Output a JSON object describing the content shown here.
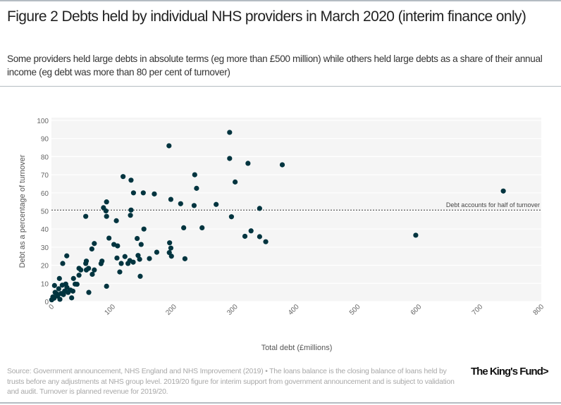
{
  "title": "Figure 2 Debts held by individual NHS providers in March 2020 (interim finance only)",
  "subtitle": "Some providers held large debts in absolute terms (eg more than £500 million) while others held large debts as a share of their annual income (eg debt was more than 80 per cent of turnover)",
  "source": "Source: Government announcement, NHS England and NHS Improvement (2019) • The loans balance is the closing balance of loans held by trusts before any adjustments at NHS group level. 2019/20 figure for interim support from government announcement and is subject to validation and audit. Turnover is planned revenue for 2019/20.",
  "logo": "The King's Fund>",
  "colors": {
    "point": "#00343f",
    "plot_bg": "#f5f5f5",
    "grid": "#ffffff"
  },
  "chart_data": {
    "type": "scatter",
    "xlabel": "Total debt (£millions)",
    "ylabel": "Debt as a percentage of turnover",
    "xlim": [
      0,
      800
    ],
    "ylim": [
      0,
      100
    ],
    "xticks": [
      "0",
      "100",
      "200",
      "300",
      "400",
      "500",
      "600",
      "700",
      "800"
    ],
    "yticks": [
      "0",
      "10",
      "20",
      "30",
      "40",
      "50",
      "60",
      "70",
      "80",
      "90",
      "100"
    ],
    "grid": true,
    "reference_line": {
      "y": 50.5,
      "label": "Debt accounts for half of turnover"
    },
    "points": [
      [
        291,
        93.4
      ],
      [
        192,
        86
      ],
      [
        291,
        79
      ],
      [
        300,
        66
      ],
      [
        117,
        69
      ],
      [
        130,
        67
      ],
      [
        234,
        70
      ],
      [
        237,
        62.5
      ],
      [
        134,
        60
      ],
      [
        150,
        60
      ],
      [
        168,
        59.4
      ],
      [
        195,
        56.4
      ],
      [
        211,
        54
      ],
      [
        233,
        53
      ],
      [
        269,
        53.6
      ],
      [
        90,
        55
      ],
      [
        85,
        51.8
      ],
      [
        89,
        50
      ],
      [
        130,
        50.5
      ],
      [
        129,
        47.6
      ],
      [
        90,
        47
      ],
      [
        56,
        47
      ],
      [
        294,
        46.8
      ],
      [
        106,
        44.6
      ],
      [
        151,
        40
      ],
      [
        216,
        40.7
      ],
      [
        246,
        40.7
      ],
      [
        94,
        35
      ],
      [
        140,
        34.8
      ],
      [
        102,
        31.5
      ],
      [
        108,
        30.7
      ],
      [
        146.5,
        31.5
      ],
      [
        193,
        32.4
      ],
      [
        195,
        29.5
      ],
      [
        192.5,
        27
      ],
      [
        196,
        25
      ],
      [
        172,
        27.2
      ],
      [
        160,
        23.7
      ],
      [
        218,
        23.6
      ],
      [
        70,
        32
      ],
      [
        66,
        29
      ],
      [
        70,
        17.4
      ],
      [
        66.7,
        15
      ],
      [
        61,
        5
      ],
      [
        107,
        24
      ],
      [
        120,
        24.8
      ],
      [
        114,
        21
      ],
      [
        125,
        21
      ],
      [
        128,
        22.6
      ],
      [
        133.5,
        21.7
      ],
      [
        141.5,
        25.4
      ],
      [
        144,
        23.3
      ],
      [
        111.6,
        16.3
      ],
      [
        145,
        13.9
      ],
      [
        90,
        8.4
      ],
      [
        82.5,
        22.3
      ],
      [
        81,
        20.9
      ],
      [
        57,
        22.3
      ],
      [
        56,
        21
      ],
      [
        57,
        17.4
      ],
      [
        60.6,
        18.3
      ],
      [
        45,
        18.3
      ],
      [
        48,
        17.4
      ],
      [
        45,
        14.5
      ],
      [
        36,
        12.7
      ],
      [
        38.7,
        9.6
      ],
      [
        41.8,
        9.5
      ],
      [
        25,
        25.2
      ],
      [
        18.4,
        21
      ],
      [
        13,
        12.7
      ],
      [
        5,
        8.8
      ],
      [
        33,
        2
      ],
      [
        0.4,
        0.9
      ],
      [
        4.2,
        1.8
      ],
      [
        8,
        4.4
      ],
      [
        11.9,
        7
      ],
      [
        13.8,
        1.2
      ],
      [
        17.6,
        9
      ],
      [
        19.6,
        3.8
      ],
      [
        21.5,
        5.7
      ],
      [
        23.4,
        9.6
      ],
      [
        25.3,
        7.7
      ],
      [
        27.2,
        5
      ],
      [
        31,
        6.3
      ],
      [
        35,
        5.7
      ],
      [
        10,
        3
      ],
      [
        6,
        5
      ],
      [
        15.7,
        4.4
      ],
      [
        2.3,
        2.5
      ],
      [
        321,
        76.3
      ],
      [
        377,
        75.5
      ],
      [
        340,
        51.4
      ],
      [
        326,
        39
      ],
      [
        316,
        36
      ],
      [
        340,
        35.8
      ],
      [
        350,
        33
      ],
      [
        595,
        36.6
      ],
      [
        738,
        61
      ]
    ]
  }
}
